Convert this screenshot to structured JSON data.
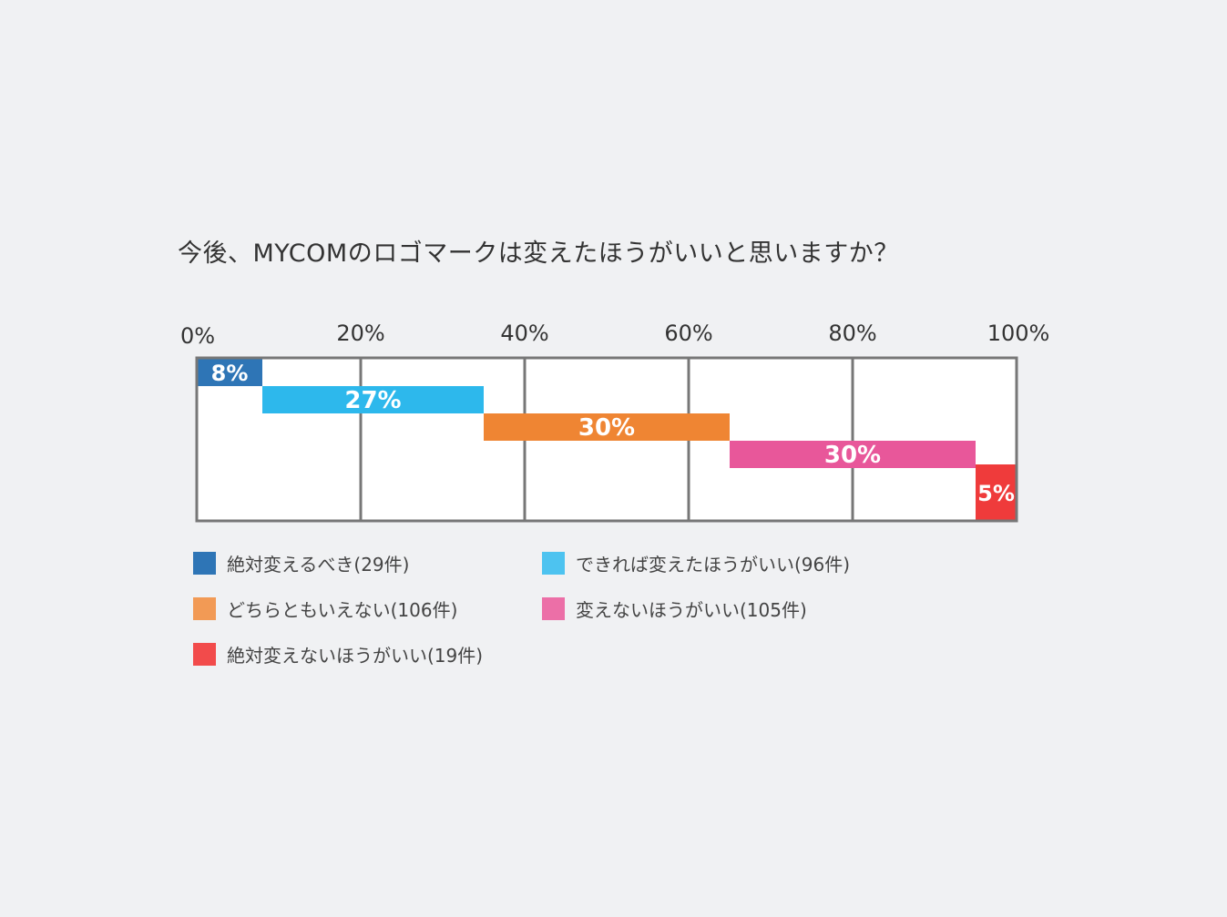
{
  "chart_data": {
    "type": "bar",
    "stacked": true,
    "orientation": "horizontal",
    "title": "今後、MYCOMのロゴマークは変えたほうがいいと思いますか？",
    "xlim": [
      0,
      100
    ],
    "ticks": [
      "0%",
      "20%",
      "40%",
      "60%",
      "80%",
      "100%"
    ],
    "tick_values": [
      0,
      20,
      40,
      60,
      80,
      100
    ],
    "grid": true,
    "legend_position": "bottom",
    "series": [
      {
        "name": "絶対変えるべき(29件)",
        "value": 8,
        "start": 0,
        "label": "8%",
        "color": "#2e75b6"
      },
      {
        "name": "できれば変えたほうがいい(96件)",
        "value": 27,
        "start": 8,
        "label": "27%",
        "color": "#2db8ec"
      },
      {
        "name": "どちらともいえない(106件)",
        "value": 30,
        "start": 35,
        "label": "30%",
        "color": "#ef8533"
      },
      {
        "name": "変えないほうがいい(105件)",
        "value": 30,
        "start": 65,
        "label": "30%",
        "color": "#e8579a"
      },
      {
        "name": "絶対変えないほうがいい(19件)",
        "value": 5,
        "start": 95,
        "label": "5%",
        "color": "#ef3b3b"
      }
    ],
    "legend_swatch_colors": [
      "#2e75b6",
      "#4dc3f0",
      "#f29a55",
      "#ec6fa7",
      "#f24b4b"
    ]
  }
}
